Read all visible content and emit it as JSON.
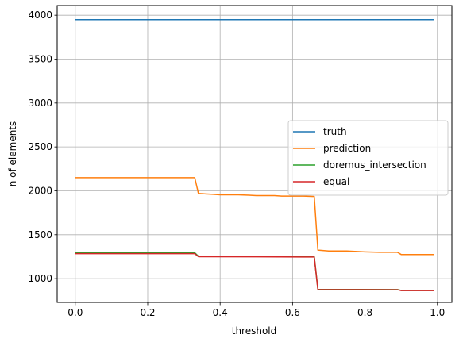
{
  "chart_data": {
    "type": "line",
    "title": "",
    "xlabel": "threshold",
    "ylabel": "n of elements",
    "xlim": [
      -0.05,
      1.04
    ],
    "ylim": [
      730,
      4110
    ],
    "xticks": [
      0.0,
      0.2,
      0.4,
      0.6,
      0.8,
      1.0
    ],
    "xtick_labels": [
      "0.0",
      "0.2",
      "0.4",
      "0.6",
      "0.8",
      "1.0"
    ],
    "yticks": [
      1000,
      1500,
      2000,
      2500,
      3000,
      3500,
      4000
    ],
    "ytick_labels": [
      "1000",
      "1500",
      "2000",
      "2500",
      "3000",
      "3500",
      "4000"
    ],
    "grid": true,
    "legend_position": "center-right",
    "series": [
      {
        "name": "truth",
        "color": "#1f77b4",
        "x": [
          0.0,
          0.99
        ],
        "y": [
          3950,
          3950
        ]
      },
      {
        "name": "prediction",
        "color": "#ff7f0e",
        "x": [
          0.0,
          0.33,
          0.34,
          0.36,
          0.38,
          0.4,
          0.45,
          0.48,
          0.5,
          0.55,
          0.57,
          0.6,
          0.63,
          0.66,
          0.67,
          0.7,
          0.75,
          0.8,
          0.84,
          0.89,
          0.9,
          0.99
        ],
        "y": [
          2150,
          2150,
          1970,
          1965,
          1960,
          1955,
          1955,
          1950,
          1945,
          1945,
          1940,
          1940,
          1940,
          1935,
          1325,
          1315,
          1315,
          1305,
          1300,
          1300,
          1275,
          1275
        ]
      },
      {
        "name": "doremus_intersection",
        "color": "#2ca02c",
        "x": [
          0.0,
          0.33,
          0.34,
          0.5,
          0.66,
          0.67,
          0.89,
          0.9,
          0.99
        ],
        "y": [
          1295,
          1295,
          1255,
          1252,
          1250,
          878,
          876,
          866,
          866
        ]
      },
      {
        "name": "equal",
        "color": "#d62728",
        "x": [
          0.0,
          0.33,
          0.34,
          0.5,
          0.66,
          0.67,
          0.89,
          0.9,
          0.99
        ],
        "y": [
          1285,
          1285,
          1250,
          1248,
          1246,
          876,
          874,
          864,
          864
        ]
      }
    ]
  }
}
